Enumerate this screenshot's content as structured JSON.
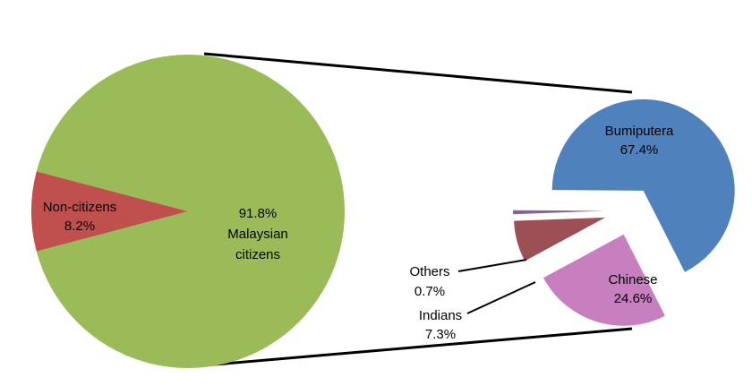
{
  "chart_data": [
    {
      "type": "pie",
      "slices": [
        {
          "label": "Non-citizens",
          "value_label": "8.2%",
          "value": 8.2,
          "color": "#c0504d"
        },
        {
          "label": "Malaysian citizens",
          "label_line1": "Malaysian",
          "label_line2": "citizens",
          "value_label": "91.8%",
          "value": 91.8,
          "color": "#9bbb59"
        }
      ]
    },
    {
      "type": "pie",
      "exploded": true,
      "slices": [
        {
          "label": "Bumiputera",
          "value_label": "67.4%",
          "value": 67.4,
          "color": "#4f81bd"
        },
        {
          "label": "Chinese",
          "value_label": "24.6%",
          "value": 24.6,
          "color": "#c87fc0"
        },
        {
          "label": "Indians",
          "value_label": "7.3%",
          "value": 7.3,
          "color": "#9c4f55"
        },
        {
          "label": "Others",
          "value_label": "0.7%",
          "value": 0.7,
          "color": "#8064a2"
        }
      ]
    }
  ]
}
